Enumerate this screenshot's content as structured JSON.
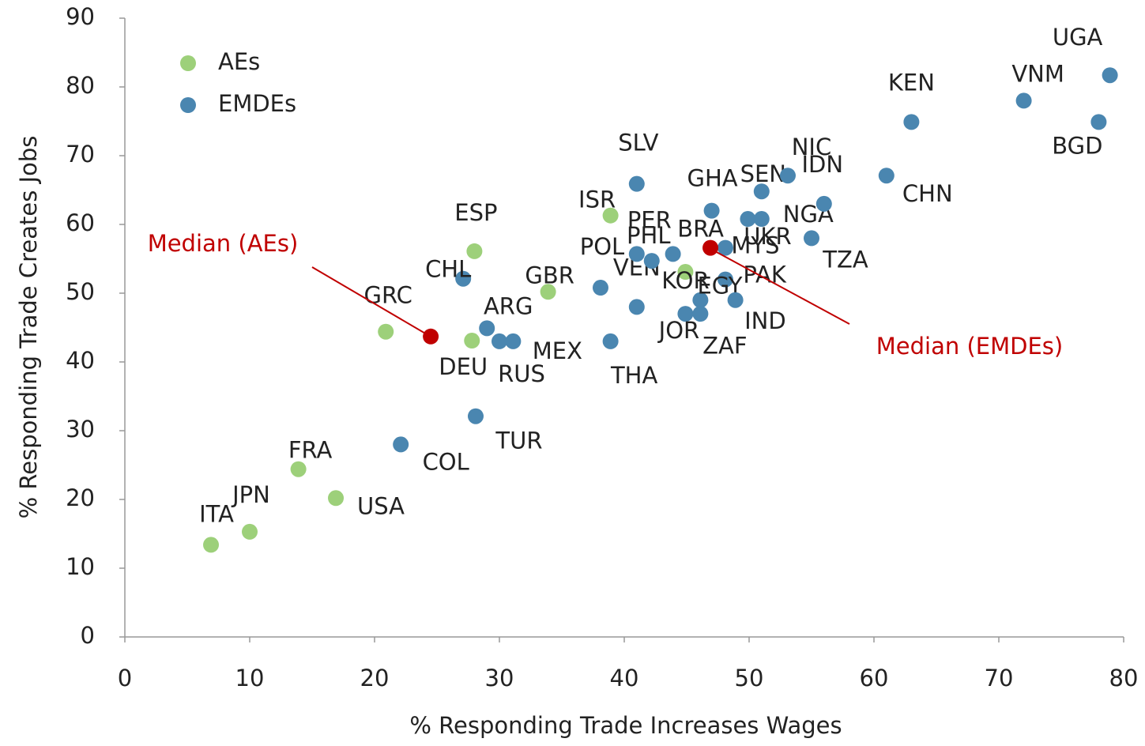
{
  "chart_data": {
    "type": "scatter",
    "xlabel": "% Responding Trade Increases Wages",
    "ylabel": "% Responding Trade Creates Jobs",
    "xlim": [
      0,
      80
    ],
    "ylim": [
      0,
      90
    ],
    "xticks": [
      0,
      10,
      20,
      30,
      40,
      50,
      60,
      70,
      80
    ],
    "yticks": [
      0,
      10,
      20,
      30,
      40,
      50,
      60,
      70,
      80,
      90
    ],
    "legend": "upper left",
    "series": [
      {
        "name": "AEs",
        "color": "#9dd07a",
        "labels": [
          "ITA",
          "JPN",
          "FRA",
          "USA",
          "GRC",
          "ESP",
          "DEU",
          "GBR",
          "ISR",
          "KOR"
        ],
        "x": [
          6.9,
          10,
          13.9,
          16.9,
          20.9,
          28,
          27.8,
          33.9,
          38.9,
          44.9
        ],
        "values": [
          13.4,
          15.3,
          24.4,
          20.2,
          44.4,
          56.1,
          43.1,
          50.2,
          61.3,
          53.1
        ]
      },
      {
        "name": "EMDEs",
        "color": "#4a86b0",
        "labels": [
          "CHL",
          "COL",
          "TUR",
          "ARG",
          "RUS",
          "MEX",
          "THA",
          "POL",
          "VEN",
          "PER",
          "PHL",
          "BRA",
          "SLV",
          "JOR",
          "IND",
          "ZAF",
          "EGY",
          "PAK",
          "MYS",
          "UKR",
          "NGA",
          "GHA",
          "SEN",
          "NIC",
          "IDN",
          "TZA",
          "CHN",
          "KEN",
          "VNM",
          "UGA",
          "BGD"
        ],
        "x": [
          27.1,
          22.1,
          28.1,
          29,
          30,
          31.1,
          38.9,
          38.1,
          41,
          41,
          42.2,
          43.9,
          41,
          44.9,
          46.1,
          46.1,
          48.1,
          48.9,
          48.1,
          49.9,
          51,
          47,
          51,
          53.1,
          56,
          55,
          61,
          63,
          72,
          78.9,
          78
        ],
        "values": [
          52.1,
          28,
          32.1,
          44.9,
          43,
          43,
          43,
          50.8,
          48,
          55.7,
          54.7,
          55.7,
          65.9,
          47,
          47,
          49,
          52,
          49,
          56.6,
          60.8,
          60.8,
          62,
          64.8,
          67.1,
          63,
          58,
          67.1,
          74.9,
          78,
          81.7,
          74.9
        ]
      }
    ],
    "annotations": [
      {
        "text": "Median (AEs)",
        "x": 24.5,
        "y": 43.7,
        "color": "#c00000"
      },
      {
        "text": "Median (EMDEs)",
        "x": 46.9,
        "y": 56.6,
        "color": "#c00000"
      }
    ]
  }
}
